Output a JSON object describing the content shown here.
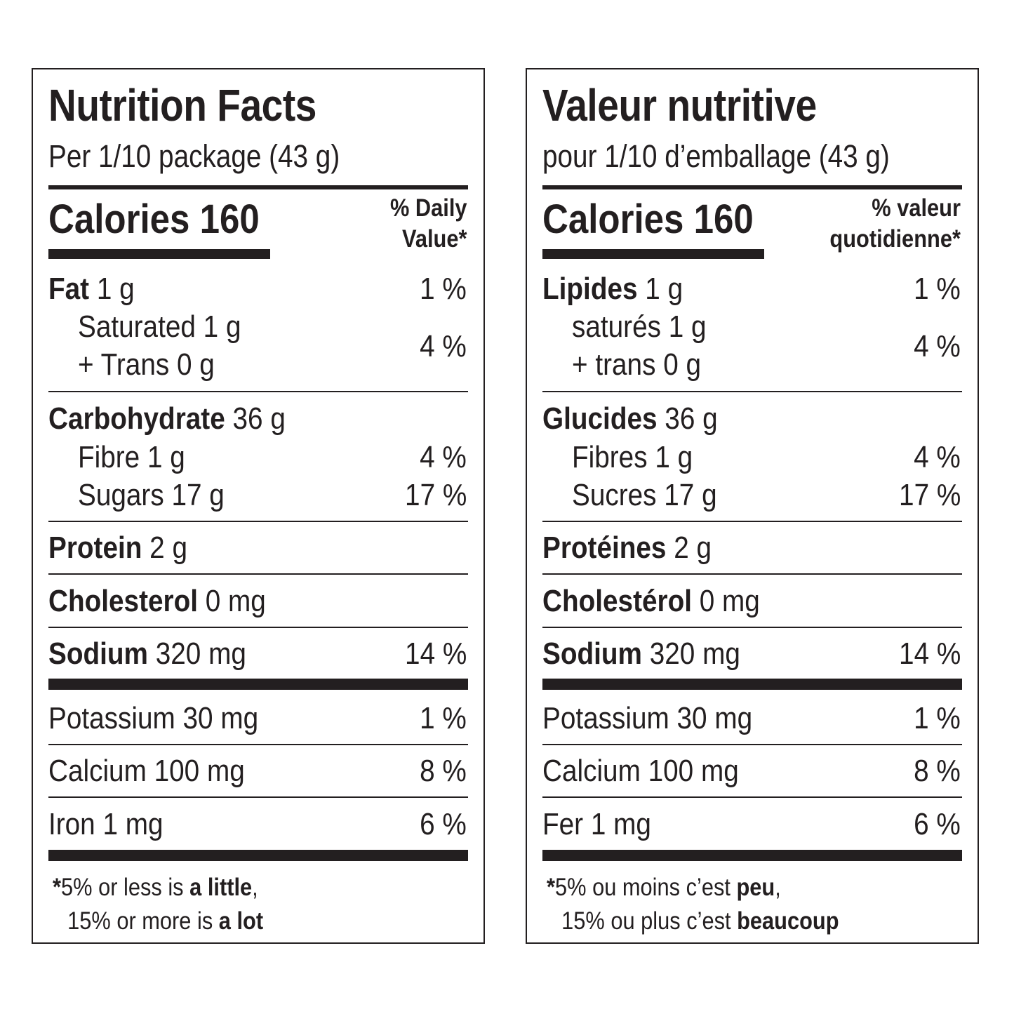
{
  "english": {
    "title": "Nutrition Facts",
    "serving": "Per 1/10 package (43 g)",
    "calories": "Calories 160",
    "dv_line1": "% Daily",
    "dv_line2": "Value*",
    "fat_label": "Fat",
    "fat_amount": " 1 g",
    "fat_pct": "1 %",
    "saturated": "Saturated 1 g",
    "trans": "+ Trans 0 g",
    "sat_trans_pct": "4 %",
    "carb_label": "Carbohydrate",
    "carb_amount": " 36 g",
    "fibre": "Fibre 1 g",
    "fibre_pct": "4 %",
    "sugars": "Sugars 17 g",
    "sugars_pct": "17 %",
    "protein_label": "Protein",
    "protein_amount": " 2 g",
    "chol_label": "Cholesterol",
    "chol_amount": " 0 mg",
    "sodium_label": "Sodium",
    "sodium_amount": " 320 mg",
    "sodium_pct": "14 %",
    "potassium": "Potassium 30 mg",
    "potassium_pct": "1 %",
    "calcium": "Calcium 100 mg",
    "calcium_pct": "8 %",
    "iron": "Iron 1 mg",
    "iron_pct": "6 %",
    "foot_ast": "*",
    "foot1_a": "5% or less is ",
    "foot1_b": "a little",
    "foot1_c": ",",
    "foot2_a": "15% or more is ",
    "foot2_b": "a lot"
  },
  "french": {
    "title": "Valeur nutritive",
    "serving": "pour 1/10 d’emballage (43 g)",
    "calories": "Calories 160",
    "dv_line1": "% valeur",
    "dv_line2": "quotidienne*",
    "fat_label": "Lipides",
    "fat_amount": " 1 g",
    "fat_pct": "1 %",
    "saturated": "saturés 1 g",
    "trans": "+ trans 0 g",
    "sat_trans_pct": "4 %",
    "carb_label": "Glucides",
    "carb_amount": " 36 g",
    "fibre": "Fibres 1 g",
    "fibre_pct": "4 %",
    "sugars": "Sucres 17 g",
    "sugars_pct": "17 %",
    "protein_label": "Protéines",
    "protein_amount": " 2 g",
    "chol_label": "Cholestérol",
    "chol_amount": " 0 mg",
    "sodium_label": "Sodium",
    "sodium_amount": " 320 mg",
    "sodium_pct": "14 %",
    "potassium": "Potassium 30 mg",
    "potassium_pct": "1 %",
    "calcium": "Calcium 100 mg",
    "calcium_pct": "8 %",
    "iron": "Fer 1 mg",
    "iron_pct": "6 %",
    "foot_ast": "*",
    "foot1_a": "5% ou moins c’est ",
    "foot1_b": "peu",
    "foot1_c": ",",
    "foot2_a": "15% ou plus c’est ",
    "foot2_b": "beaucoup"
  }
}
